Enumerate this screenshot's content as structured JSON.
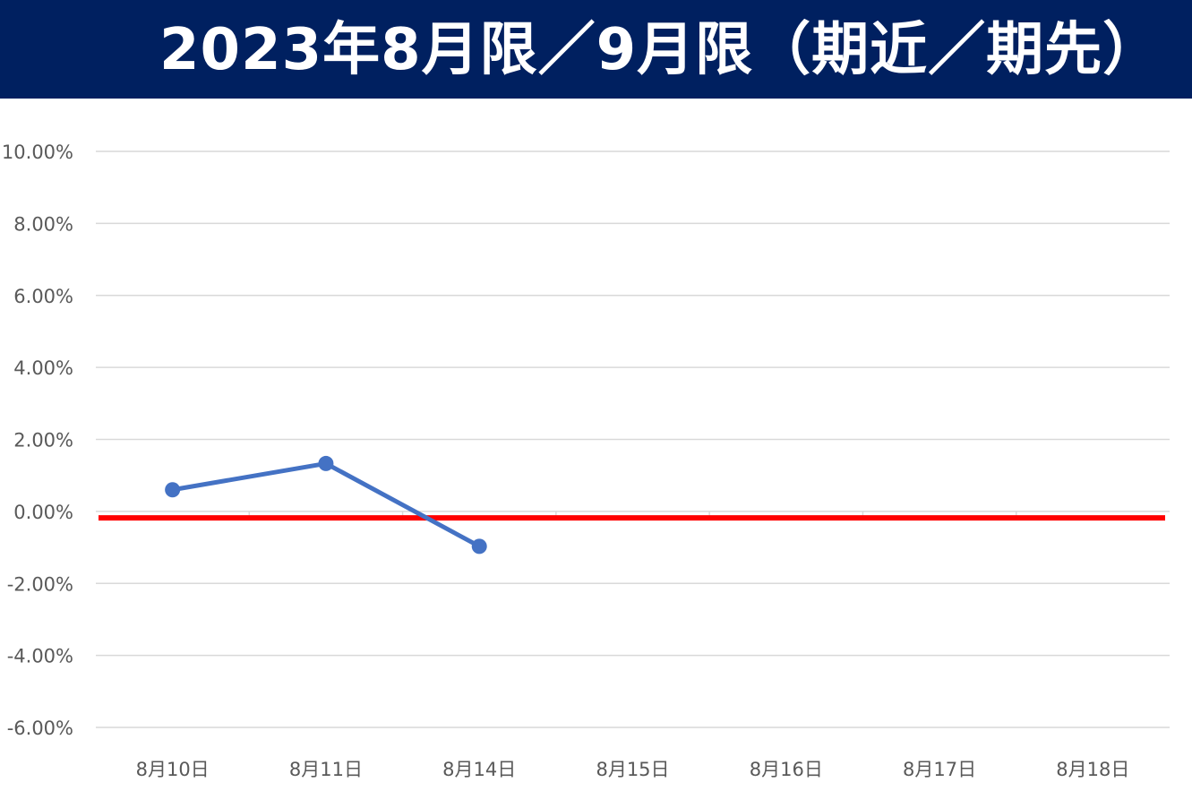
{
  "chart_data": {
    "type": "line",
    "title": "2023年8月限／9月限（期近／期先）",
    "categories": [
      "8月10日",
      "8月11日",
      "8月14日",
      "8月15日",
      "8月16日",
      "8月17日",
      "8月18日"
    ],
    "series": [
      {
        "color": "#4472C4",
        "values": [
          0.006,
          0.0133,
          -0.0097,
          null,
          null,
          null,
          null
        ]
      },
      {
        "color": "#FF0000",
        "values": [
          -0.0018,
          -0.0018,
          -0.0018,
          -0.0018,
          -0.0018,
          -0.0018,
          -0.0018
        ]
      }
    ],
    "yticks": [
      "10.00%",
      "8.00%",
      "6.00%",
      "4.00%",
      "2.00%",
      "0.00%",
      "-2.00%",
      "-4.00%",
      "-6.00%"
    ],
    "ylim": [
      -0.06,
      0.1
    ],
    "grid": true,
    "title_color": "#ffffff",
    "banner_color": "#002060",
    "grid_color": "#D9D9D9",
    "tick_label_color": "#595959"
  }
}
